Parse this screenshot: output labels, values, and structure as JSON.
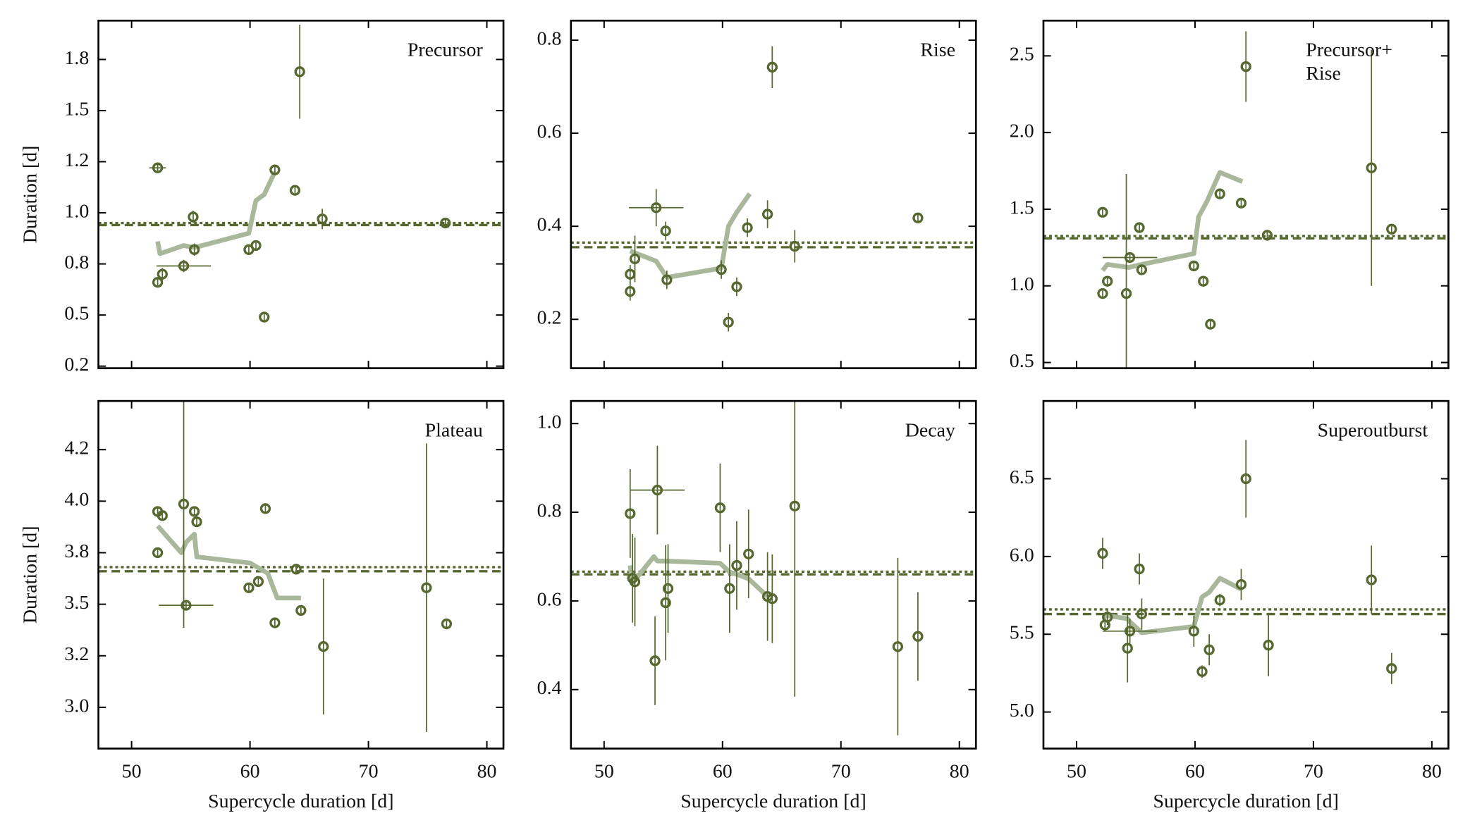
{
  "chart_data": [
    {
      "type": "scatter",
      "title": "Precursor",
      "ylabel": "Duration [d]",
      "xlim": [
        47.2,
        81.4
      ],
      "xticks": [
        50,
        60,
        70,
        80
      ],
      "ylim": [
        0.24,
        1.94
      ],
      "yticks": [
        {
          "value": 0.25,
          "label": "0.2"
        },
        0.5,
        {
          "value": 0.75,
          "label": "0.8"
        },
        {
          "value": 1.0,
          "label": "1.0"
        },
        {
          "value": 1.25,
          "label": "1.2"
        },
        1.5,
        {
          "value": 1.75,
          "label": "1.8"
        }
      ],
      "color": "#56682f",
      "trend_color": "#a9b79a",
      "points": {
        "x": [
          52.2,
          52.2,
          52.6,
          54.4,
          55.2,
          55.3,
          59.9,
          60.5,
          61.2,
          62.1,
          63.8,
          64.2,
          66.1,
          76.5
        ],
        "values": [
          1.22,
          0.66,
          0.7,
          0.74,
          0.98,
          0.82,
          0.82,
          0.84,
          0.49,
          1.21,
          1.11,
          1.69,
          0.97,
          0.95
        ],
        "xerr": [
          0.7,
          null,
          null,
          2.3,
          null,
          null,
          null,
          null,
          null,
          null,
          null,
          null,
          null,
          null
        ],
        "yerr": [
          0.02,
          0.02,
          0.03,
          0.03,
          0.03,
          0.03,
          0.02,
          0.02,
          0.02,
          0.02,
          0.02,
          0.23,
          0.05,
          0.02
        ]
      },
      "trend": {
        "x": [
          52.2,
          52.4,
          54.4,
          55.3,
          59.9,
          60.5,
          61.2,
          62.1
        ],
        "values": [
          0.86,
          0.8,
          0.84,
          0.83,
          0.9,
          1.06,
          1.09,
          1.2
        ]
      },
      "hlines": [
        {
          "value": 0.95,
          "style": "dotted"
        },
        {
          "value": 0.94,
          "style": "dashed"
        }
      ]
    },
    {
      "type": "scatter",
      "title": "Rise",
      "xlim": [
        47.2,
        81.4
      ],
      "xticks": [
        50,
        60,
        70,
        80
      ],
      "ylim": [
        0.095,
        0.842
      ],
      "yticks": [
        0.2,
        0.4,
        0.6,
        0.8
      ],
      "color": "#56682f",
      "trend_color": "#a9b79a",
      "points": {
        "x": [
          52.2,
          52.2,
          52.6,
          54.4,
          55.2,
          55.3,
          59.9,
          60.5,
          61.2,
          62.1,
          63.8,
          64.2,
          66.1,
          76.5
        ],
        "values": [
          0.26,
          0.297,
          0.33,
          0.44,
          0.39,
          0.285,
          0.307,
          0.194,
          0.27,
          0.397,
          0.426,
          0.742,
          0.357,
          0.418
        ],
        "xerr": [
          null,
          null,
          null,
          2.3,
          null,
          null,
          null,
          null,
          null,
          null,
          null,
          null,
          null,
          null
        ],
        "yerr": [
          0.02,
          0.02,
          0.05,
          0.04,
          0.02,
          0.02,
          0.02,
          0.02,
          0.02,
          0.02,
          0.03,
          0.045,
          0.035,
          0.01
        ]
      },
      "trend": {
        "x": [
          52.2,
          54.4,
          55.3,
          59.9,
          60.5,
          61.2,
          62.3
        ],
        "values": [
          0.347,
          0.325,
          0.29,
          0.31,
          0.4,
          0.43,
          0.47
        ]
      },
      "hlines": [
        {
          "value": 0.365,
          "style": "dotted"
        },
        {
          "value": 0.355,
          "style": "dashed"
        }
      ]
    },
    {
      "type": "scatter",
      "title": [
        "Precursor+",
        "Rise"
      ],
      "xlim": [
        47.2,
        81.4
      ],
      "xticks": [
        50,
        60,
        70,
        80
      ],
      "ylim": [
        0.463,
        2.73
      ],
      "yticks": [
        0.5,
        {
          "value": 1.0,
          "label": "1.0"
        },
        1.5,
        {
          "value": 2.0,
          "label": "2.0"
        },
        2.5
      ],
      "color": "#56682f",
      "trend_color": "#a9b79a",
      "points": {
        "x": [
          52.2,
          52.2,
          52.6,
          54.2,
          54.5,
          55.3,
          55.5,
          59.9,
          60.7,
          61.3,
          62.1,
          63.9,
          64.3,
          66.1,
          74.9,
          76.6
        ],
        "values": [
          1.48,
          0.95,
          1.03,
          0.95,
          1.185,
          1.38,
          1.105,
          1.13,
          1.03,
          0.75,
          1.6,
          1.54,
          2.43,
          1.33,
          1.77,
          1.37
        ],
        "xerr": [
          null,
          null,
          null,
          null,
          2.3,
          null,
          null,
          null,
          null,
          null,
          null,
          null,
          null,
          null,
          null,
          null
        ],
        "yerr": [
          0.02,
          0.02,
          0.03,
          0.78,
          0.03,
          0.03,
          0.02,
          0.02,
          0.02,
          0.02,
          0.02,
          0.02,
          0.23,
          0.02,
          0.77,
          0.02
        ]
      },
      "trend": {
        "x": [
          52.2,
          52.6,
          54.4,
          55.5,
          59.9,
          60.3,
          61.0,
          62.1,
          64.0
        ],
        "values": [
          1.1,
          1.14,
          1.12,
          1.14,
          1.21,
          1.45,
          1.55,
          1.74,
          1.68
        ]
      },
      "hlines": [
        {
          "value": 1.325,
          "style": "dotted"
        },
        {
          "value": 1.31,
          "style": "dashed"
        }
      ]
    },
    {
      "type": "scatter",
      "title": "Plateau",
      "ylabel": "Duration [d]",
      "xlabel": "Supercycle duration [d]",
      "xlim": [
        47.2,
        81.4
      ],
      "xticks": [
        50,
        60,
        70,
        80
      ],
      "ylim": [
        2.8,
        4.486
      ],
      "yticks": [
        {
          "value": 3.0,
          "label": "3.0"
        },
        {
          "value": 3.25,
          "label": "3.2"
        },
        3.5,
        {
          "value": 3.75,
          "label": "3.8"
        },
        {
          "value": 4.0,
          "label": "4.0"
        },
        {
          "value": 4.25,
          "label": "4.2"
        }
      ],
      "color": "#56682f",
      "trend_color": "#a9b79a",
      "points": {
        "x": [
          52.2,
          52.2,
          52.6,
          54.4,
          54.6,
          55.3,
          55.5,
          59.9,
          60.7,
          61.3,
          62.1,
          63.9,
          64.3,
          66.2,
          74.9,
          76.6
        ],
        "values": [
          3.75,
          3.95,
          3.93,
          3.986,
          3.495,
          3.95,
          3.9,
          3.58,
          3.61,
          3.964,
          3.41,
          3.67,
          3.47,
          3.295,
          3.58,
          3.405
        ],
        "xerr": [
          null,
          null,
          null,
          null,
          2.3,
          null,
          null,
          null,
          null,
          null,
          null,
          null,
          null,
          null,
          null,
          null
        ],
        "yerr": [
          0.02,
          0.02,
          0.02,
          0.6,
          0.02,
          0.02,
          0.02,
          0.02,
          0.02,
          0.02,
          0.02,
          0.02,
          0.02,
          0.33,
          0.7,
          0.02
        ]
      },
      "trend": {
        "x": [
          52.2,
          54.2,
          54.6,
          55.3,
          55.5,
          60.0,
          61.5,
          62.3,
          64.3
        ],
        "values": [
          3.88,
          3.75,
          3.8,
          3.84,
          3.73,
          3.7,
          3.65,
          3.53,
          3.53
        ]
      },
      "hlines": [
        {
          "value": 3.68,
          "style": "dotted"
        },
        {
          "value": 3.66,
          "style": "dashed"
        }
      ]
    },
    {
      "type": "scatter",
      "title": "Decay",
      "xlabel": "Supercycle duration [d]",
      "xlim": [
        47.2,
        81.4
      ],
      "xticks": [
        50,
        60,
        70,
        80
      ],
      "ylim": [
        0.267,
        1.051
      ],
      "yticks": [
        0.4,
        0.6,
        0.8,
        {
          "value": 1.0,
          "label": "1.0"
        }
      ],
      "color": "#56682f",
      "trend_color": "#a9b79a",
      "points": {
        "x": [
          52.2,
          52.4,
          52.6,
          54.3,
          54.5,
          55.2,
          55.4,
          59.8,
          60.6,
          61.2,
          62.2,
          63.8,
          64.2,
          66.1,
          74.8,
          76.5
        ],
        "values": [
          0.797,
          0.651,
          0.643,
          0.465,
          0.85,
          0.596,
          0.628,
          0.81,
          0.628,
          0.68,
          0.706,
          0.61,
          0.605,
          0.814,
          0.497,
          0.52
        ],
        "xerr": [
          null,
          null,
          null,
          null,
          2.3,
          null,
          null,
          null,
          null,
          null,
          null,
          null,
          null,
          null,
          null,
          null
        ],
        "yerr": [
          0.1,
          0.1,
          0.1,
          0.1,
          0.1,
          0.13,
          0.1,
          0.1,
          0.1,
          0.1,
          0.1,
          0.1,
          0.1,
          0.43,
          0.2,
          0.1
        ]
      },
      "trend": {
        "x": [
          52.2,
          52.4,
          54.2,
          54.5,
          55.2,
          59.8,
          60.6,
          61.2,
          62.2,
          63.8
        ],
        "values": [
          0.68,
          0.64,
          0.7,
          0.69,
          0.69,
          0.685,
          0.665,
          0.66,
          0.65,
          0.61
        ]
      },
      "hlines": [
        {
          "value": 0.666,
          "style": "dotted"
        },
        {
          "value": 0.66,
          "style": "dashed"
        }
      ]
    },
    {
      "type": "scatter",
      "title": "Superoutburst",
      "xlabel": "Supercycle duration [d]",
      "xlim": [
        47.2,
        81.4
      ],
      "xticks": [
        50,
        60,
        70,
        80
      ],
      "ylim": [
        4.765,
        7.0
      ],
      "yticks": [
        {
          "value": 5.0,
          "label": "5.0"
        },
        5.5,
        {
          "value": 6.0,
          "label": "6.0"
        },
        6.5
      ],
      "color": "#56682f",
      "trend_color": "#a9b79a",
      "points": {
        "x": [
          52.2,
          52.4,
          52.6,
          54.3,
          54.5,
          55.3,
          55.5,
          59.9,
          60.6,
          61.2,
          62.1,
          63.9,
          64.3,
          66.2,
          74.9,
          76.6
        ],
        "values": [
          6.02,
          5.56,
          5.61,
          5.41,
          5.52,
          5.92,
          5.63,
          5.52,
          5.26,
          5.4,
          5.72,
          5.82,
          6.5,
          5.43,
          5.85,
          5.28
        ],
        "xerr": [
          null,
          null,
          null,
          null,
          2.3,
          null,
          null,
          null,
          null,
          null,
          null,
          null,
          null,
          null,
          null,
          null
        ],
        "yerr": [
          0.1,
          0.04,
          0.05,
          0.22,
          0.08,
          0.1,
          0.1,
          0.1,
          0.04,
          0.1,
          0.04,
          0.1,
          0.25,
          0.2,
          0.22,
          0.1
        ]
      },
      "trend": {
        "x": [
          52.2,
          52.6,
          54.3,
          54.5,
          55.5,
          59.9,
          60.6,
          61.2,
          62.1,
          63.9
        ],
        "values": [
          5.61,
          5.62,
          5.6,
          5.58,
          5.51,
          5.55,
          5.74,
          5.77,
          5.86,
          5.79
        ]
      },
      "hlines": [
        {
          "value": 5.66,
          "style": "dotted"
        },
        {
          "value": 5.63,
          "style": "dashed"
        }
      ]
    }
  ]
}
